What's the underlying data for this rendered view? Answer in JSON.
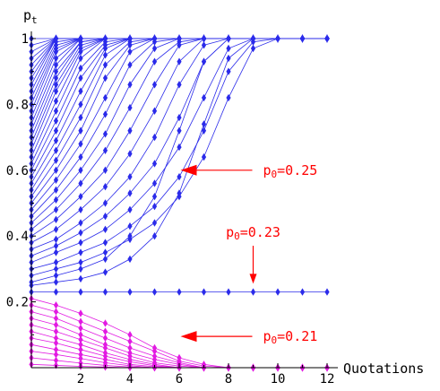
{
  "chart_data": {
    "type": "line",
    "xlabel": "Quotations",
    "ylabel": "p",
    "ylabel_subscript": "t",
    "xlim": [
      0,
      12
    ],
    "ylim": [
      0,
      1
    ],
    "x_ticks": [
      "2",
      "4",
      "6",
      "8",
      "10",
      "12"
    ],
    "y_ticks": [
      "0.2",
      "0.4",
      "0.6",
      "0.8",
      "1"
    ],
    "x": [
      0,
      1,
      2,
      3,
      4,
      5,
      6,
      7,
      8,
      9,
      10,
      11,
      12
    ],
    "grid": false,
    "colors": {
      "upper": "#2b2bea",
      "lower": "#e21ae2",
      "annotation": "#ff0000"
    },
    "upper_series": [
      [
        1,
        1,
        1,
        1,
        1,
        1,
        1,
        1,
        1,
        1,
        1,
        1,
        1
      ],
      [
        0.98,
        1,
        1,
        1,
        1,
        1,
        1,
        1,
        1,
        1,
        1,
        1,
        1
      ],
      [
        0.96,
        1,
        1,
        1,
        1,
        1,
        1,
        1,
        1,
        1,
        1,
        1,
        1
      ],
      [
        0.94,
        1,
        1,
        1,
        1,
        1,
        1,
        1,
        1,
        1,
        1,
        1,
        1
      ],
      [
        0.92,
        1,
        1,
        1,
        1,
        1,
        1,
        1,
        1,
        1,
        1,
        1,
        1
      ],
      [
        0.9,
        1,
        1,
        1,
        1,
        1,
        1,
        1,
        1,
        1,
        1,
        1,
        1
      ],
      [
        0.88,
        1,
        1,
        1,
        1,
        1,
        1,
        1,
        1,
        1,
        1,
        1,
        1
      ],
      [
        0.86,
        1,
        1,
        1,
        1,
        1,
        1,
        1,
        1,
        1,
        1,
        1,
        1
      ],
      [
        0.84,
        0.99,
        1,
        1,
        1,
        1,
        1,
        1,
        1,
        1,
        1,
        1,
        1
      ],
      [
        0.82,
        0.98,
        1,
        1,
        1,
        1,
        1,
        1,
        1,
        1,
        1,
        1,
        1
      ],
      [
        0.8,
        0.97,
        1,
        1,
        1,
        1,
        1,
        1,
        1,
        1,
        1,
        1,
        1
      ],
      [
        0.78,
        0.96,
        1,
        1,
        1,
        1,
        1,
        1,
        1,
        1,
        1,
        1,
        1
      ],
      [
        0.76,
        0.94,
        1,
        1,
        1,
        1,
        1,
        1,
        1,
        1,
        1,
        1,
        1
      ],
      [
        0.74,
        0.92,
        1,
        1,
        1,
        1,
        1,
        1,
        1,
        1,
        1,
        1,
        1
      ],
      [
        0.72,
        0.9,
        0.99,
        1,
        1,
        1,
        1,
        1,
        1,
        1,
        1,
        1,
        1
      ],
      [
        0.7,
        0.88,
        0.99,
        1,
        1,
        1,
        1,
        1,
        1,
        1,
        1,
        1,
        1
      ],
      [
        0.68,
        0.86,
        0.98,
        1,
        1,
        1,
        1,
        1,
        1,
        1,
        1,
        1,
        1
      ],
      [
        0.66,
        0.84,
        0.97,
        1,
        1,
        1,
        1,
        1,
        1,
        1,
        1,
        1,
        1
      ],
      [
        0.64,
        0.81,
        0.96,
        1,
        1,
        1,
        1,
        1,
        1,
        1,
        1,
        1,
        1
      ],
      [
        0.62,
        0.78,
        0.94,
        1,
        1,
        1,
        1,
        1,
        1,
        1,
        1,
        1,
        1
      ],
      [
        0.6,
        0.75,
        0.91,
        0.99,
        1,
        1,
        1,
        1,
        1,
        1,
        1,
        1,
        1
      ],
      [
        0.58,
        0.72,
        0.88,
        0.98,
        1,
        1,
        1,
        1,
        1,
        1,
        1,
        1,
        1
      ],
      [
        0.56,
        0.69,
        0.84,
        0.97,
        1,
        1,
        1,
        1,
        1,
        1,
        1,
        1,
        1
      ],
      [
        0.54,
        0.66,
        0.8,
        0.95,
        1,
        1,
        1,
        1,
        1,
        1,
        1,
        1,
        1
      ],
      [
        0.52,
        0.63,
        0.76,
        0.92,
        0.99,
        1,
        1,
        1,
        1,
        1,
        1,
        1,
        1
      ],
      [
        0.5,
        0.6,
        0.72,
        0.88,
        0.98,
        1,
        1,
        1,
        1,
        1,
        1,
        1,
        1
      ],
      [
        0.48,
        0.57,
        0.68,
        0.82,
        0.96,
        1,
        1,
        1,
        1,
        1,
        1,
        1,
        1
      ],
      [
        0.46,
        0.54,
        0.64,
        0.77,
        0.92,
        0.99,
        1,
        1,
        1,
        1,
        1,
        1,
        1
      ],
      [
        0.44,
        0.51,
        0.6,
        0.71,
        0.86,
        0.97,
        1,
        1,
        1,
        1,
        1,
        1,
        1
      ],
      [
        0.42,
        0.48,
        0.56,
        0.66,
        0.79,
        0.93,
        0.99,
        1,
        1,
        1,
        1,
        1,
        1
      ],
      [
        0.4,
        0.45,
        0.52,
        0.6,
        0.72,
        0.86,
        0.98,
        1,
        1,
        1,
        1,
        1,
        1
      ],
      [
        0.38,
        0.42,
        0.48,
        0.55,
        0.65,
        0.78,
        0.93,
        1,
        1,
        1,
        1,
        1,
        1
      ],
      [
        0.36,
        0.39,
        0.44,
        0.5,
        0.58,
        0.7,
        0.86,
        0.98,
        1,
        1,
        1,
        1,
        1
      ],
      [
        0.34,
        0.37,
        0.41,
        0.46,
        0.53,
        0.62,
        0.76,
        0.93,
        1,
        1,
        1,
        1,
        1
      ],
      [
        0.32,
        0.35,
        0.38,
        0.42,
        0.48,
        0.56,
        0.67,
        0.82,
        0.97,
        1,
        1,
        1,
        1
      ],
      [
        0.3,
        0.32,
        0.35,
        0.38,
        0.43,
        0.49,
        0.58,
        0.72,
        0.9,
        0.99,
        1,
        1,
        1
      ],
      [
        0.28,
        0.3,
        0.32,
        0.35,
        0.39,
        0.44,
        0.52,
        0.64,
        0.82,
        0.97,
        1,
        1,
        1
      ],
      [
        0.26,
        0.28,
        0.3,
        0.33,
        0.4,
        0.52,
        0.72,
        0.93,
        1,
        1,
        1,
        1,
        1
      ],
      [
        0.25,
        0.26,
        0.27,
        0.29,
        0.33,
        0.4,
        0.53,
        0.74,
        0.94,
        1,
        1,
        1,
        1
      ]
    ],
    "threshold_series": [
      0.23,
      0.23,
      0.23,
      0.23,
      0.23,
      0.23,
      0.23,
      0.23,
      0.23,
      0.23,
      0.23,
      0.23,
      0.23
    ],
    "lower_series": [
      [
        0.21,
        0.19,
        0.165,
        0.135,
        0.1,
        0.06,
        0.03,
        0.01,
        0,
        0,
        0,
        0,
        0
      ],
      [
        0.19,
        0.17,
        0.14,
        0.11,
        0.08,
        0.05,
        0.02,
        0.005,
        0,
        0,
        0,
        0,
        0
      ],
      [
        0.17,
        0.15,
        0.12,
        0.09,
        0.06,
        0.035,
        0.015,
        0,
        0,
        0,
        0,
        0,
        0
      ],
      [
        0.15,
        0.13,
        0.1,
        0.07,
        0.045,
        0.025,
        0.01,
        0,
        0,
        0,
        0,
        0,
        0
      ],
      [
        0.13,
        0.11,
        0.085,
        0.06,
        0.035,
        0.015,
        0.005,
        0,
        0,
        0,
        0,
        0,
        0
      ],
      [
        0.11,
        0.09,
        0.07,
        0.045,
        0.025,
        0.01,
        0,
        0,
        0,
        0,
        0,
        0,
        0
      ],
      [
        0.09,
        0.075,
        0.055,
        0.035,
        0.018,
        0.006,
        0,
        0,
        0,
        0,
        0,
        0,
        0
      ],
      [
        0.07,
        0.055,
        0.04,
        0.025,
        0.01,
        0.003,
        0,
        0,
        0,
        0,
        0,
        0,
        0
      ],
      [
        0.05,
        0.04,
        0.028,
        0.015,
        0.006,
        0,
        0,
        0,
        0,
        0,
        0,
        0,
        0
      ],
      [
        0.03,
        0.022,
        0.014,
        0.007,
        0.002,
        0,
        0,
        0,
        0,
        0,
        0,
        0,
        0
      ],
      [
        0.01,
        0.007,
        0.004,
        0.002,
        0,
        0,
        0,
        0,
        0,
        0,
        0,
        0,
        0
      ]
    ],
    "annotations": [
      {
        "label": "p0=0.25",
        "text": "p",
        "sub": "0",
        "value": "=0.25",
        "arrow": "left",
        "x": 9.4,
        "y": 0.6
      },
      {
        "label": "p0=0.23",
        "text": "p",
        "sub": "0",
        "value": "=0.23",
        "arrow": "down",
        "x": 9.0,
        "y": 0.365
      },
      {
        "label": "p0=0.21",
        "text": "p",
        "sub": "0",
        "value": "=0.21",
        "arrow": "left",
        "x": 9.4,
        "y": 0.095
      }
    ]
  }
}
